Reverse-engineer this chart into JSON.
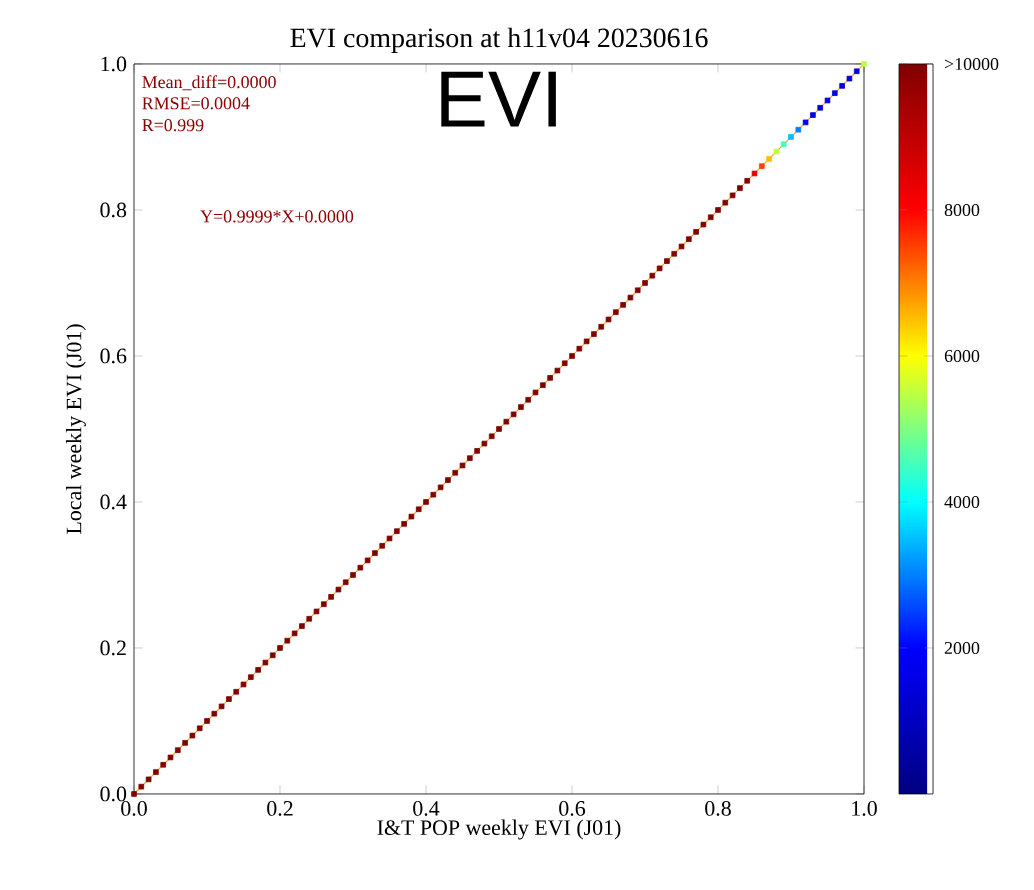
{
  "chart_data": {
    "type": "scatter",
    "title": "EVI comparison at h11v04 20230616",
    "xlabel": "I&T POP weekly EVI (J01)",
    "ylabel": "Local weekly EVI (J01)",
    "annotations": [
      "Mean_diff=0.0000",
      "RMSE=0.0004",
      "R=0.999",
      "Y=0.9999*X+0.0000",
      "EVI"
    ],
    "xlim": [
      0,
      1
    ],
    "ylim": [
      0,
      1
    ],
    "xticks": [
      {
        "value": 0,
        "label": "0.0"
      },
      0.2,
      0.4,
      0.6,
      0.8,
      {
        "value": 1,
        "label": "1.0"
      }
    ],
    "yticks": [
      {
        "value": 0,
        "label": "0.0"
      },
      0.2,
      0.4,
      0.6,
      0.8,
      {
        "value": 1,
        "label": "1.0"
      }
    ],
    "clim": [
      0,
      10000
    ],
    "cticks": [
      2000,
      4000,
      6000,
      8000,
      {
        "value": 10000,
        "label": ">10000"
      }
    ],
    "grid": false,
    "series": [
      {
        "marker": "square",
        "x": [
          0,
          0.01,
          0.02,
          0.03,
          0.04,
          0.05,
          0.06,
          0.07,
          0.08,
          0.09,
          0.1,
          0.11,
          0.12,
          0.13,
          0.14,
          0.15,
          0.16,
          0.17,
          0.18,
          0.19,
          0.2,
          0.21,
          0.22,
          0.23,
          0.24,
          0.25,
          0.26,
          0.27,
          0.28,
          0.29,
          0.3,
          0.31,
          0.32,
          0.33,
          0.34,
          0.35,
          0.36,
          0.37,
          0.38,
          0.39,
          0.4,
          0.41,
          0.42,
          0.43,
          0.44,
          0.45,
          0.46,
          0.47,
          0.48,
          0.49,
          0.5,
          0.51,
          0.52,
          0.53,
          0.54,
          0.55,
          0.56,
          0.57,
          0.58,
          0.59,
          0.6,
          0.61,
          0.62,
          0.63,
          0.64,
          0.65,
          0.66,
          0.67,
          0.68,
          0.69,
          0.7,
          0.71,
          0.72,
          0.73,
          0.74,
          0.75,
          0.76,
          0.77,
          0.78,
          0.79,
          0.8,
          0.81,
          0.82,
          0.83,
          0.84,
          0.85,
          0.86,
          0.87,
          0.88,
          0.89,
          0.9,
          0.91,
          0.92,
          0.93,
          0.94,
          0.95,
          0.96,
          0.97,
          0.98,
          0.99,
          1
        ],
        "values": [
          0,
          0.01,
          0.02,
          0.03,
          0.04,
          0.05,
          0.06,
          0.07,
          0.08,
          0.09,
          0.1,
          0.11,
          0.12,
          0.13,
          0.14,
          0.15,
          0.16,
          0.17,
          0.18,
          0.19,
          0.2,
          0.21,
          0.22,
          0.23,
          0.24,
          0.25,
          0.26,
          0.27,
          0.28,
          0.29,
          0.3,
          0.31,
          0.32,
          0.33,
          0.34,
          0.35,
          0.36,
          0.37,
          0.38,
          0.39,
          0.4,
          0.41,
          0.42,
          0.43,
          0.44,
          0.45,
          0.46,
          0.47,
          0.48,
          0.49,
          0.5,
          0.51,
          0.52,
          0.53,
          0.54,
          0.55,
          0.56,
          0.57,
          0.58,
          0.59,
          0.6,
          0.61,
          0.62,
          0.63,
          0.64,
          0.65,
          0.66,
          0.67,
          0.68,
          0.69,
          0.7,
          0.71,
          0.72,
          0.73,
          0.74,
          0.75,
          0.76,
          0.77,
          0.78,
          0.79,
          0.8,
          0.81,
          0.82,
          0.83,
          0.84,
          0.85,
          0.86,
          0.87,
          0.88,
          0.89,
          0.9,
          0.91,
          0.92,
          0.93,
          0.94,
          0.95,
          0.96,
          0.97,
          0.98,
          0.99,
          1
        ],
        "cvalues": [
          10000,
          10000,
          10000,
          10000,
          10000,
          10000,
          10000,
          10000,
          10000,
          10000,
          10000,
          10000,
          10000,
          10000,
          10000,
          10000,
          10000,
          10000,
          10000,
          10000,
          10000,
          10000,
          10000,
          10000,
          10000,
          10000,
          10000,
          10000,
          10000,
          10000,
          10000,
          10000,
          10000,
          10000,
          10000,
          10000,
          10000,
          10000,
          10000,
          10000,
          10000,
          10000,
          10000,
          10000,
          10000,
          10000,
          10000,
          10000,
          10000,
          10000,
          10000,
          10000,
          10000,
          10000,
          10000,
          10000,
          10000,
          10000,
          10000,
          10000,
          10000,
          10000,
          10000,
          10000,
          10000,
          10000,
          10000,
          10000,
          10000,
          10000,
          10000,
          10000,
          10000,
          10000,
          10000,
          10000,
          10000,
          10000,
          10000,
          10000,
          10000,
          10000,
          10000,
          10000,
          10000,
          8500,
          7500,
          6500,
          5500,
          4500,
          3500,
          3000,
          2000,
          1500,
          1500,
          1500,
          1500,
          1500,
          1500,
          1500,
          5500
        ],
        "colors": [
          "#800000",
          "#800000",
          "#800000",
          "#800000",
          "#800000",
          "#800000",
          "#800000",
          "#800000",
          "#800000",
          "#800000",
          "#800000",
          "#800000",
          "#800000",
          "#800000",
          "#800000",
          "#800000",
          "#800000",
          "#800000",
          "#800000",
          "#800000",
          "#800000",
          "#800000",
          "#800000",
          "#800000",
          "#800000",
          "#800000",
          "#800000",
          "#800000",
          "#800000",
          "#800000",
          "#800000",
          "#800000",
          "#800000",
          "#800000",
          "#800000",
          "#800000",
          "#800000",
          "#800000",
          "#800000",
          "#800000",
          "#800000",
          "#800000",
          "#800000",
          "#800000",
          "#800000",
          "#800000",
          "#800000",
          "#800000",
          "#800000",
          "#800000",
          "#800000",
          "#800000",
          "#800000",
          "#800000",
          "#800000",
          "#800000",
          "#800000",
          "#800000",
          "#800000",
          "#800000",
          "#800000",
          "#800000",
          "#800000",
          "#800000",
          "#800000",
          "#800000",
          "#800000",
          "#800000",
          "#800000",
          "#800000",
          "#800000",
          "#800000",
          "#800000",
          "#800000",
          "#800000",
          "#800000",
          "#800000",
          "#800000",
          "#800000",
          "#800000",
          "#800000",
          "#800000",
          "#800000",
          "#800000",
          "#800000",
          "#DF0000",
          "#FF4000",
          "#FFBF00",
          "#BFFF40",
          "#40FFBF",
          "#00BFFF",
          "#0080FF",
          "#0000FF",
          "#0000DF",
          "#0000DF",
          "#0000DF",
          "#0000DF",
          "#0000DF",
          "#0000DF",
          "#0000DF",
          "#BFFF40"
        ]
      },
      {
        "type": "line",
        "x": [
          0,
          1
        ],
        "values": [
          0,
          1
        ],
        "color": "#ffa500"
      }
    ]
  }
}
